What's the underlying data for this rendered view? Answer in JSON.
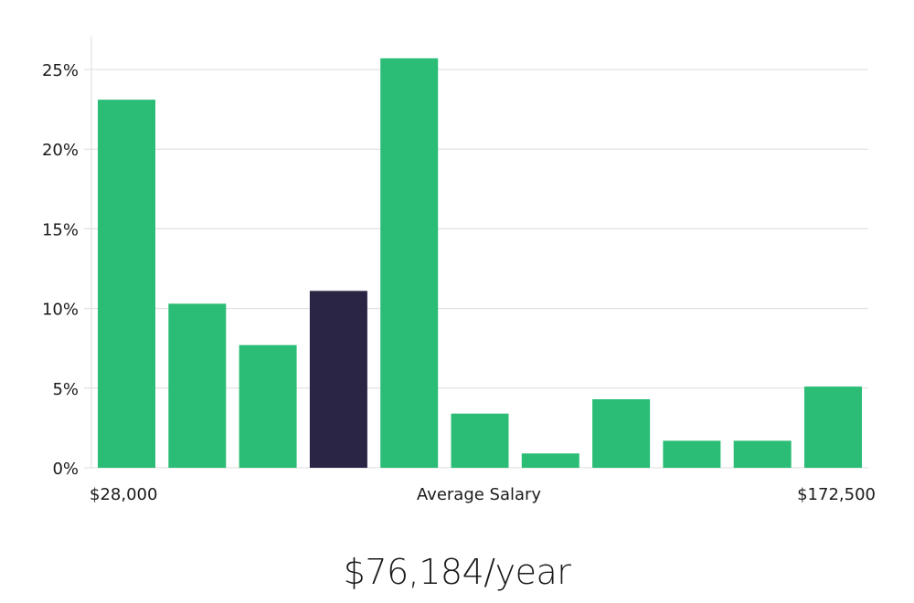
{
  "chart_data": {
    "type": "bar",
    "title": "",
    "ylabel": "",
    "ylim": [
      0,
      27
    ],
    "yticks": [
      0,
      5,
      10,
      15,
      20,
      25
    ],
    "ytick_suffix": "%",
    "values": [
      23.1,
      10.3,
      7.7,
      11.1,
      25.7,
      3.4,
      0.9,
      4.3,
      1.7,
      1.7,
      5.1
    ],
    "highlight_index": 3,
    "bar_color": "#2bbd76",
    "highlight_color": "#2a2545",
    "x_axis_labels": {
      "left": "$28,000",
      "center": "Average Salary",
      "right": "$172,500"
    }
  },
  "headline": "$76,184/year"
}
